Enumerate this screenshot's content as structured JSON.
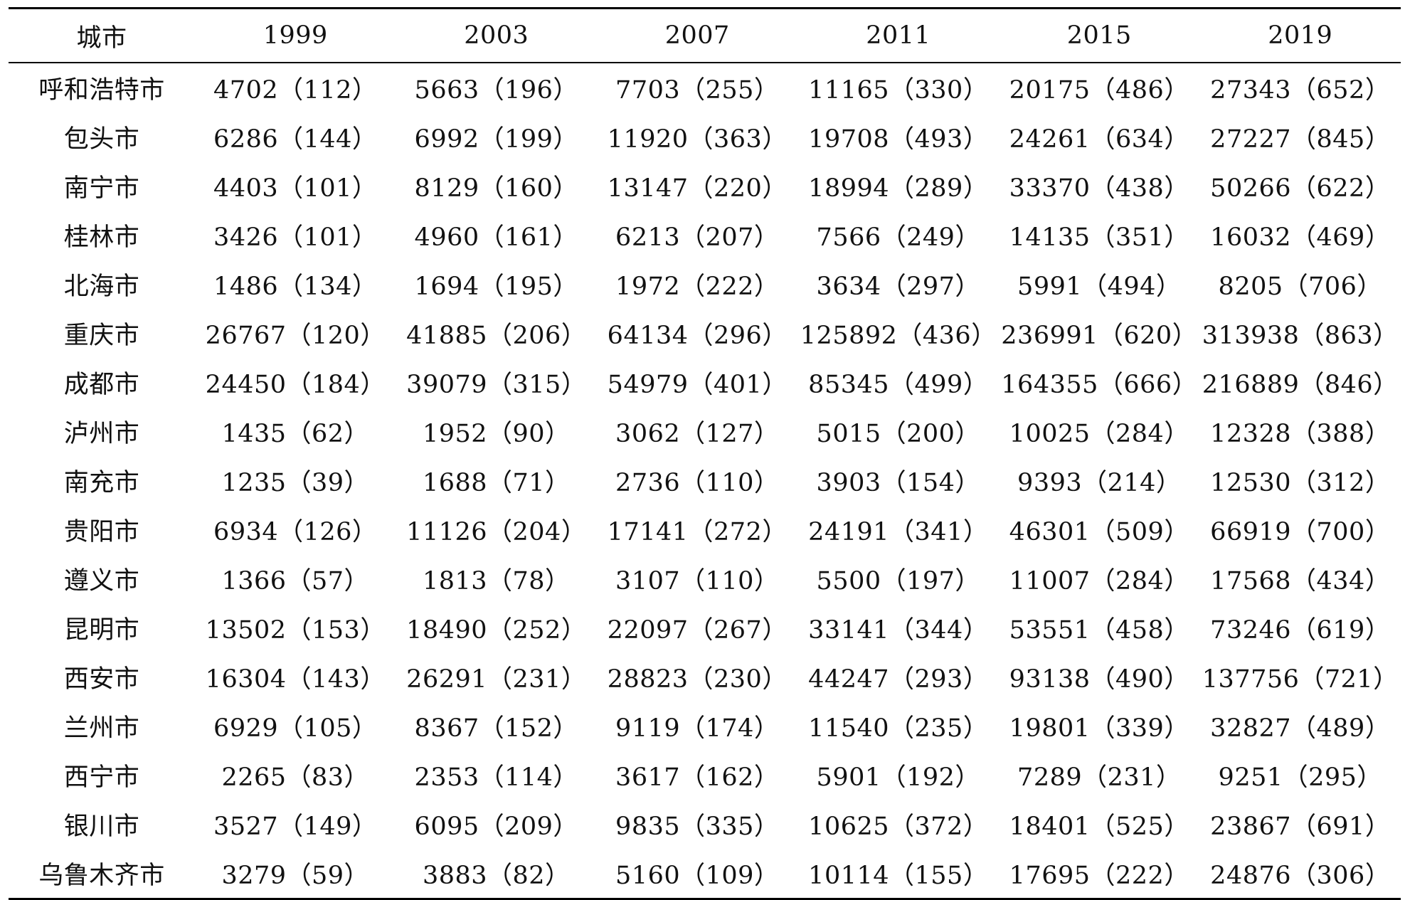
{
  "headers": [
    "城市",
    "1999",
    "2003",
    "2007",
    "2011",
    "2015",
    "2019"
  ],
  "rows": [
    [
      "呼和浩特市",
      "4702（112）",
      "5663（196）",
      "7703（255）",
      "11165（330）",
      "20175（486）",
      "27343（652）"
    ],
    [
      "包头市",
      "6286（144）",
      "6992（199）",
      "11920（363）",
      "19708（493）",
      "24261（634）",
      "27227（845）"
    ],
    [
      "南宁市",
      "4403（101）",
      "8129（160）",
      "13147（220）",
      "18994（289）",
      "33370（438）",
      "50266（622）"
    ],
    [
      "桂林市",
      "3426（101）",
      "4960（161）",
      "6213（207）",
      "7566（249）",
      "14135（351）",
      "16032（469）"
    ],
    [
      "北海市",
      "1486（134）",
      "1694（195）",
      "1972（222）",
      "3634（297）",
      "5991（494）",
      "8205（706）"
    ],
    [
      "重庆市",
      "26767（120）",
      "41885（206）",
      "64134（296）",
      "125892（436）",
      "236991（620）",
      "313938（863）"
    ],
    [
      "成都市",
      "24450（184）",
      "39079（315）",
      "54979（401）",
      "85345（499）",
      "164355（666）",
      "216889（846）"
    ],
    [
      "泸州市",
      "1435（62）",
      "1952（90）",
      "3062（127）",
      "5015（200）",
      "10025（284）",
      "12328（388）"
    ],
    [
      "南充市",
      "1235（39）",
      "1688（71）",
      "2736（110）",
      "3903（154）",
      "9393（214）",
      "12530（312）"
    ],
    [
      "贵阳市",
      "6934（126）",
      "11126（204）",
      "17141（272）",
      "24191（341）",
      "46301（509）",
      "66919（700）"
    ],
    [
      "遵义市",
      "1366（57）",
      "1813（78）",
      "3107（110）",
      "5500（197）",
      "11007（284）",
      "17568（434）"
    ],
    [
      "昆明市",
      "13502（153）",
      "18490（252）",
      "22097（267）",
      "33141（344）",
      "53551（458）",
      "73246（619）"
    ],
    [
      "西安市",
      "16304（143）",
      "26291（231）",
      "28823（230）",
      "44247（293）",
      "93138（490）",
      "137756（721）"
    ],
    [
      "兰州市",
      "6929（105）",
      "8367（152）",
      "9119（174）",
      "11540（235）",
      "19801（339）",
      "32827（489）"
    ],
    [
      "西宁市",
      "2265（83）",
      "2353（114）",
      "3617（162）",
      "5901（192）",
      "7289（231）",
      "9251（295）"
    ],
    [
      "银川市",
      "3527（149）",
      "6095（209）",
      "9835（335）",
      "10625（372）",
      "18401（525）",
      "23867（691）"
    ],
    [
      "乌鲁木齐市",
      "3279（59）",
      "3883（82）",
      "5160（109）",
      "10114（155）",
      "17695（222）",
      "24876（306）"
    ]
  ]
}
